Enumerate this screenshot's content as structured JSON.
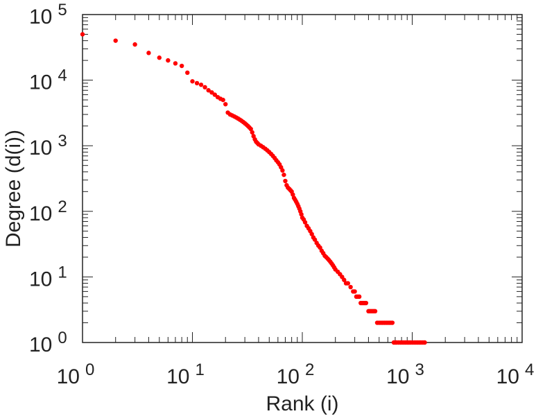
{
  "chart_data": {
    "type": "scatter",
    "title": "",
    "xlabel": "Rank (i)",
    "ylabel": "Degree (d(i))",
    "xscale": "log",
    "yscale": "log",
    "xlim": [
      1,
      10000
    ],
    "ylim": [
      1,
      100000
    ],
    "grid": false,
    "marker_color": "#ff0000",
    "x_ticks": [
      {
        "base": "10",
        "exp": "0"
      },
      {
        "base": "10",
        "exp": "1"
      },
      {
        "base": "10",
        "exp": "2"
      },
      {
        "base": "10",
        "exp": "3"
      },
      {
        "base": "10",
        "exp": "4"
      }
    ],
    "y_ticks": [
      {
        "base": "10",
        "exp": "0"
      },
      {
        "base": "10",
        "exp": "1"
      },
      {
        "base": "10",
        "exp": "2"
      },
      {
        "base": "10",
        "exp": "3"
      },
      {
        "base": "10",
        "exp": "4"
      },
      {
        "base": "10",
        "exp": "5"
      }
    ],
    "points": [
      [
        1,
        50000
      ],
      [
        2,
        40000
      ],
      [
        3,
        35000
      ],
      [
        4,
        26000
      ],
      [
        5,
        22000
      ],
      [
        6,
        20000
      ],
      [
        7,
        18000
      ],
      [
        8,
        16500
      ],
      [
        9,
        13000
      ],
      [
        10,
        9600
      ],
      [
        11,
        9000
      ],
      [
        12,
        8500
      ],
      [
        13,
        7800
      ],
      [
        14,
        7000
      ],
      [
        15,
        6500
      ],
      [
        16,
        6000
      ],
      [
        17,
        5500
      ],
      [
        18,
        5200
      ],
      [
        19,
        5000
      ],
      [
        20,
        4300
      ],
      [
        21,
        3200
      ],
      [
        22,
        3000
      ],
      [
        23,
        2900
      ],
      [
        24,
        2800
      ],
      [
        25,
        2700
      ],
      [
        26,
        2600
      ],
      [
        27,
        2500
      ],
      [
        28,
        2400
      ],
      [
        29,
        2300
      ],
      [
        30,
        2200
      ],
      [
        31,
        2100
      ],
      [
        32,
        2000
      ],
      [
        33,
        1900
      ],
      [
        34,
        1800
      ],
      [
        35,
        1600
      ],
      [
        36,
        1400
      ],
      [
        37,
        1250
      ],
      [
        38,
        1150
      ],
      [
        39,
        1100
      ],
      [
        40,
        1050
      ],
      [
        42,
        1000
      ],
      [
        44,
        950
      ],
      [
        46,
        900
      ],
      [
        48,
        850
      ],
      [
        50,
        800
      ],
      [
        52,
        750
      ],
      [
        54,
        700
      ],
      [
        56,
        650
      ],
      [
        58,
        600
      ],
      [
        60,
        560
      ],
      [
        62,
        520
      ],
      [
        64,
        470
      ],
      [
        66,
        420
      ],
      [
        68,
        360
      ],
      [
        70,
        290
      ],
      [
        72,
        250
      ],
      [
        74,
        230
      ],
      [
        76,
        220
      ],
      [
        78,
        210
      ],
      [
        80,
        200
      ],
      [
        82,
        180
      ],
      [
        84,
        160
      ],
      [
        86,
        150
      ],
      [
        88,
        140
      ],
      [
        90,
        130
      ],
      [
        92,
        120
      ],
      [
        94,
        110
      ],
      [
        96,
        100
      ],
      [
        98,
        90
      ],
      [
        100,
        80
      ],
      [
        103,
        75
      ],
      [
        106,
        68
      ],
      [
        110,
        60
      ],
      [
        114,
        55
      ],
      [
        118,
        50
      ],
      [
        122,
        45
      ],
      [
        126,
        40
      ],
      [
        130,
        37
      ],
      [
        135,
        33
      ],
      [
        140,
        30
      ],
      [
        145,
        28
      ],
      [
        150,
        25
      ],
      [
        155,
        23
      ],
      [
        160,
        21
      ],
      [
        165,
        20
      ],
      [
        170,
        19
      ],
      [
        175,
        18
      ],
      [
        180,
        17
      ],
      [
        185,
        16
      ],
      [
        190,
        15
      ],
      [
        195,
        14
      ],
      [
        200,
        13
      ],
      [
        210,
        12
      ],
      [
        220,
        11
      ],
      [
        230,
        10
      ],
      [
        240,
        9
      ],
      [
        250,
        8
      ],
      [
        260,
        8
      ],
      [
        275,
        7
      ],
      [
        290,
        6
      ],
      [
        300,
        6
      ],
      [
        310,
        5
      ],
      [
        320,
        5
      ],
      [
        330,
        5
      ],
      [
        340,
        4
      ],
      [
        350,
        4
      ],
      [
        360,
        4
      ],
      [
        370,
        4
      ],
      [
        380,
        4
      ],
      [
        400,
        3
      ],
      [
        410,
        3
      ],
      [
        420,
        3
      ],
      [
        430,
        3
      ],
      [
        440,
        3
      ],
      [
        450,
        3
      ],
      [
        460,
        3
      ],
      [
        480,
        2
      ],
      [
        500,
        2
      ],
      [
        520,
        2
      ],
      [
        540,
        2
      ],
      [
        560,
        2
      ],
      [
        580,
        2
      ],
      [
        600,
        2
      ],
      [
        620,
        2
      ],
      [
        640,
        2
      ],
      [
        660,
        2
      ],
      [
        680,
        1
      ],
      [
        700,
        1
      ],
      [
        720,
        1
      ],
      [
        750,
        1
      ],
      [
        780,
        1
      ],
      [
        810,
        1
      ],
      [
        840,
        1
      ],
      [
        870,
        1
      ],
      [
        900,
        1
      ],
      [
        930,
        1
      ],
      [
        960,
        1
      ],
      [
        1000,
        1
      ],
      [
        1040,
        1
      ],
      [
        1080,
        1
      ],
      [
        1120,
        1
      ],
      [
        1160,
        1
      ],
      [
        1200,
        1
      ],
      [
        1250,
        1
      ],
      [
        1300,
        1
      ]
    ]
  }
}
